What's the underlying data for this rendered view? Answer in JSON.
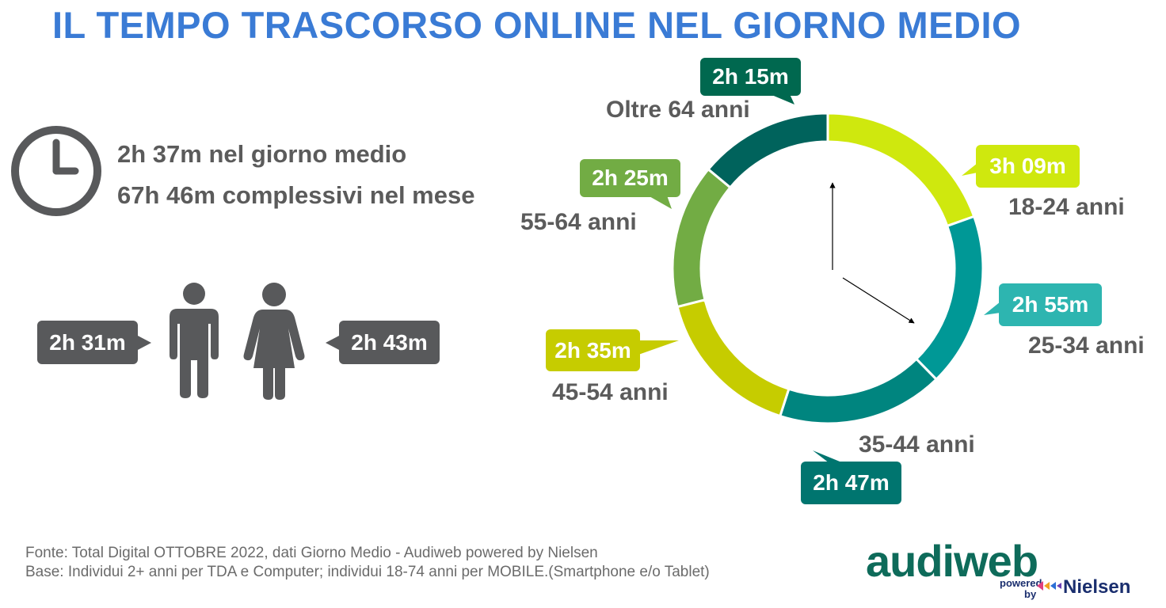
{
  "title": "IL TEMPO TRASCORSO ONLINE NEL GIORNO MEDIO",
  "summary": {
    "daily": "2h 37m nel giorno medio",
    "monthly": "67h 46m complessivi nel mese"
  },
  "gender": {
    "male_value": "2h 31m",
    "female_value": "2h 43m"
  },
  "chart_data": {
    "type": "pie",
    "subtype": "donut",
    "categories": [
      "18-24 anni",
      "25-34 anni",
      "35-44 anni",
      "45-54 anni",
      "55-64 anni",
      "Oltre 64 anni"
    ],
    "labels": [
      "3h 09m",
      "2h 55m",
      "2h 47m",
      "2h 35m",
      "2h 25m",
      "2h 15m"
    ],
    "values": [
      189,
      175,
      167,
      155,
      145,
      135
    ],
    "colors": [
      "#cfe80e",
      "#009896",
      "#00857f",
      "#c6cc00",
      "#72ac44",
      "#00635c"
    ],
    "bubble_colors": [
      "#cfe80e",
      "#2db5b0",
      "#00756f",
      "#c6cc00",
      "#72ac44",
      "#00684f"
    ]
  },
  "footer": {
    "source": "Fonte: Total Digital OTTOBRE 2022, dati Giorno Medio - Audiweb powered by Nielsen",
    "base": "Base:  Individui 2+ anni per TDA e Computer; individui 18-74 anni per MOBILE.(Smartphone e/o Tablet)"
  },
  "logo": {
    "brand": "audiweb",
    "powered": "powered",
    "by": "by",
    "partner": "Nielsen"
  }
}
